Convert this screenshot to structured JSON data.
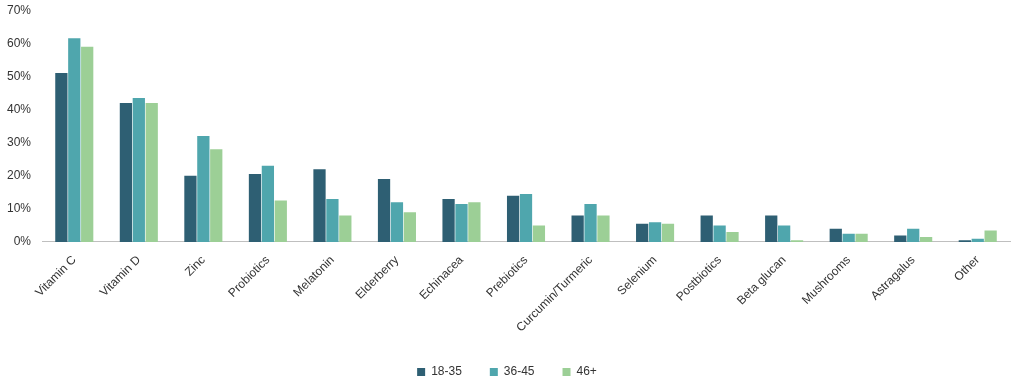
{
  "chart_data": {
    "type": "bar",
    "categories": [
      "Vitamin C",
      "Vitamin D",
      "Zinc",
      "Probiotics",
      "Melatonin",
      "Elderberry",
      "Echinacea",
      "Prebiotics",
      "Curcumin/Turmeric",
      "Selenium",
      "Postbiotics",
      "Beta glucan",
      "Mushrooms",
      "Astragalus",
      "Other"
    ],
    "series": [
      {
        "name": "18-35",
        "color": "#2e5f73",
        "values": [
          51,
          42,
          20,
          20.5,
          22,
          19,
          13,
          14,
          8,
          5.5,
          8,
          8,
          4,
          2,
          0.5
        ]
      },
      {
        "name": "36-45",
        "color": "#4fa6ad",
        "values": [
          61.5,
          43.5,
          32,
          23,
          13,
          12,
          11.5,
          14.5,
          11.5,
          6,
          5,
          5,
          2.5,
          4,
          1
        ]
      },
      {
        "name": "46+",
        "color": "#9ccf96",
        "values": [
          59,
          42,
          28,
          12.5,
          8,
          9,
          12,
          5,
          8,
          5.5,
          3,
          0.5,
          2.5,
          1.5,
          3.5
        ]
      }
    ],
    "ylim": [
      0,
      70
    ],
    "yticks": [
      {
        "value": 0,
        "label": "0%"
      },
      {
        "value": 10,
        "label": "10%"
      },
      {
        "value": 20,
        "label": "20%"
      },
      {
        "value": 30,
        "label": "30%"
      },
      {
        "value": 40,
        "label": "40%"
      },
      {
        "value": 50,
        "label": "50%"
      },
      {
        "value": 60,
        "label": "60%"
      },
      {
        "value": 70,
        "label": "70%"
      }
    ],
    "grid": false,
    "legend": "bottom"
  }
}
